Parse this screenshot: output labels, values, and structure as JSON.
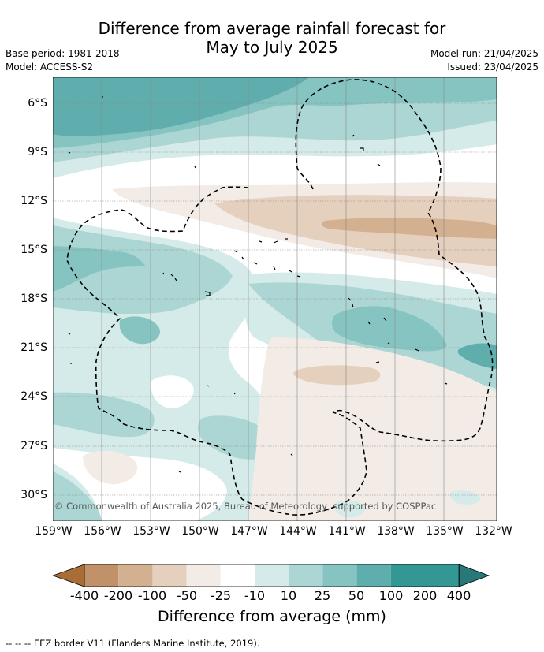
{
  "title_line1": "Difference from average rainfall forecast for",
  "title_line2": "May to July 2025",
  "meta": {
    "base_period": "Base period: 1981-2018",
    "model": "Model: ACCESS-S2",
    "model_run": "Model run: 21/04/2025",
    "issued": "Issued: 23/04/2025"
  },
  "map": {
    "lat_labels": [
      "6°S",
      "9°S",
      "12°S",
      "15°S",
      "18°S",
      "21°S",
      "24°S",
      "27°S",
      "30°S"
    ],
    "lon_labels": [
      "159°W",
      "156°W",
      "153°W",
      "150°W",
      "147°W",
      "144°W",
      "141°W",
      "138°W",
      "135°W",
      "132°W"
    ],
    "copyright": "© Commonwealth of Australia 2025, Bureau of Meteorology, supported by COSPPac",
    "colors": {
      "dry_400": "#a86e36",
      "dry_200": "#c1926a",
      "dry_100": "#d3b08f",
      "dry_50": "#e4d0bd",
      "dry_25": "#f3ebe5",
      "neutral": "#ffffff",
      "wet_10": "#d5ebe9",
      "wet_25": "#acd6d3",
      "wet_50": "#85c4c1",
      "wet_100": "#5fadac",
      "wet_200": "#339894",
      "wet_400": "#277979"
    }
  },
  "colorbar": {
    "labels": [
      "-400",
      "-200",
      "-100",
      "-50",
      "-25",
      "-10",
      "10",
      "25",
      "50",
      "100",
      "200",
      "400"
    ],
    "title": "Difference from average (mm)"
  },
  "footnote": "--  --  -- EEZ border V11 (Flanders Marine Institute, 2019)."
}
